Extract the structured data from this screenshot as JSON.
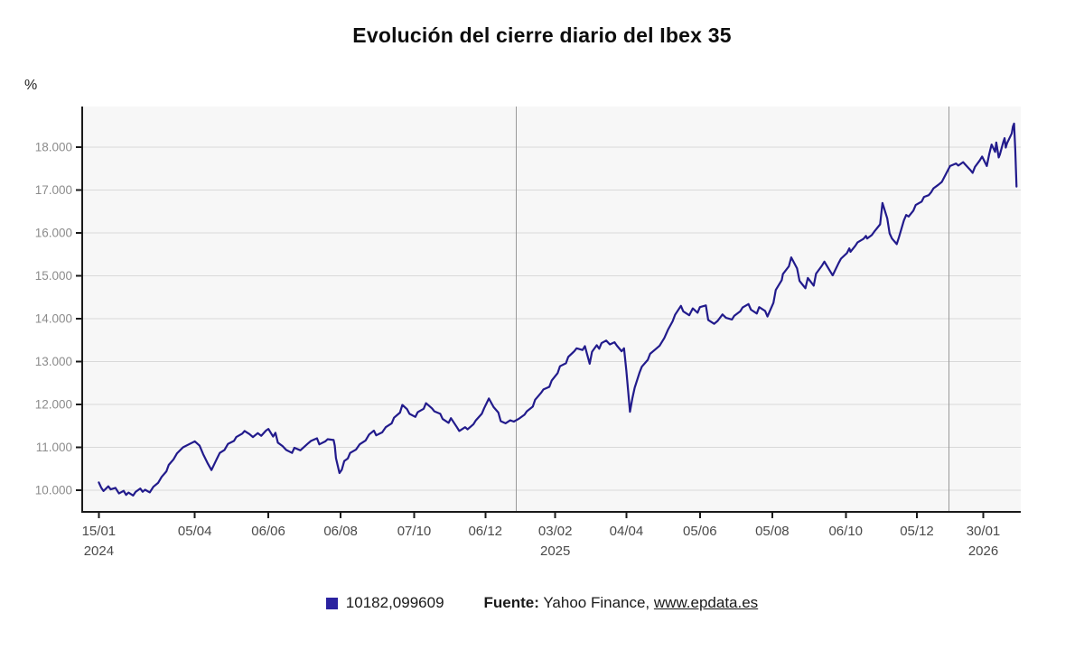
{
  "page": {
    "title": "Evolución del cierre diario del Ibex 35"
  },
  "footer": {
    "legend_value": "10182,099609",
    "source_label": "Fuente:",
    "source_text": " Yahoo Finance, ",
    "link_text": "www.epdata.es"
  },
  "chart_data": {
    "type": "line",
    "title": "Evolución del cierre diario del Ibex 35",
    "y_unit": "%",
    "series_name": "10182,099609",
    "legend_position": "bottom",
    "grid": true,
    "y_range": [
      9450,
      18950
    ],
    "x_range": [
      "2024-01-01",
      "2026-03-02"
    ],
    "colors": {
      "line": "#221b8c",
      "marker": "#2a22a0",
      "plot_bg": "#f7f7f7",
      "grid": "#d9d9d9",
      "axis": "#1a1a1a",
      "separator": "#9a9a9a",
      "y_tick_text": "#8c8c8c",
      "x_tick_text": "#4a4a4a"
    },
    "y_ticks": [
      {
        "value": 10000,
        "label": "10.000"
      },
      {
        "value": 11000,
        "label": "11.000"
      },
      {
        "value": 12000,
        "label": "12.000"
      },
      {
        "value": 13000,
        "label": "13.000"
      },
      {
        "value": 14000,
        "label": "14.000"
      },
      {
        "value": 15000,
        "label": "15.000"
      },
      {
        "value": 16000,
        "label": "16.000"
      },
      {
        "value": 17000,
        "label": "17.000"
      },
      {
        "value": 18000,
        "label": "18.000"
      }
    ],
    "x_ticks": [
      {
        "date": "2024-01-15",
        "label": "15/01",
        "year": "2024"
      },
      {
        "date": "2024-04-05",
        "label": "05/04"
      },
      {
        "date": "2024-06-06",
        "label": "06/06"
      },
      {
        "date": "2024-08-06",
        "label": "06/08"
      },
      {
        "date": "2024-10-07",
        "label": "07/10"
      },
      {
        "date": "2024-12-06",
        "label": "06/12"
      },
      {
        "date": "2025-02-03",
        "label": "03/02",
        "year": "2025"
      },
      {
        "date": "2025-04-04",
        "label": "04/04"
      },
      {
        "date": "2025-06-05",
        "label": "05/06"
      },
      {
        "date": "2025-08-05",
        "label": "05/08"
      },
      {
        "date": "2025-10-06",
        "label": "06/10"
      },
      {
        "date": "2025-12-05",
        "label": "05/12"
      },
      {
        "date": "2026-01-30",
        "label": "30/01",
        "year": "2026"
      }
    ],
    "year_separators": [
      "2025-01-01",
      "2026-01-01"
    ],
    "points": [
      [
        "2024-01-15",
        10182.1
      ],
      [
        "2024-01-17",
        10060
      ],
      [
        "2024-01-19",
        9980
      ],
      [
        "2024-01-23",
        10090
      ],
      [
        "2024-01-25",
        10020
      ],
      [
        "2024-01-29",
        10055
      ],
      [
        "2024-02-01",
        9925
      ],
      [
        "2024-02-05",
        9985
      ],
      [
        "2024-02-07",
        9890
      ],
      [
        "2024-02-09",
        9945
      ],
      [
        "2024-02-13",
        9875
      ],
      [
        "2024-02-15",
        9960
      ],
      [
        "2024-02-19",
        10040
      ],
      [
        "2024-02-21",
        9965
      ],
      [
        "2024-02-23",
        10010
      ],
      [
        "2024-02-27",
        9950
      ],
      [
        "2024-03-01",
        10080
      ],
      [
        "2024-03-05",
        10170
      ],
      [
        "2024-03-08",
        10310
      ],
      [
        "2024-03-12",
        10440
      ],
      [
        "2024-03-14",
        10590
      ],
      [
        "2024-03-18",
        10720
      ],
      [
        "2024-03-21",
        10860
      ],
      [
        "2024-03-26",
        11000
      ],
      [
        "2024-04-02",
        11100
      ],
      [
        "2024-04-05",
        11140
      ],
      [
        "2024-04-09",
        11040
      ],
      [
        "2024-04-12",
        10840
      ],
      [
        "2024-04-16",
        10620
      ],
      [
        "2024-04-19",
        10470
      ],
      [
        "2024-04-23",
        10700
      ],
      [
        "2024-04-26",
        10870
      ],
      [
        "2024-04-30",
        10940
      ],
      [
        "2024-05-03",
        11080
      ],
      [
        "2024-05-08",
        11150
      ],
      [
        "2024-05-10",
        11240
      ],
      [
        "2024-05-15",
        11320
      ],
      [
        "2024-05-17",
        11380
      ],
      [
        "2024-05-21",
        11310
      ],
      [
        "2024-05-24",
        11240
      ],
      [
        "2024-05-28",
        11330
      ],
      [
        "2024-05-31",
        11270
      ],
      [
        "2024-06-04",
        11390
      ],
      [
        "2024-06-06",
        11430
      ],
      [
        "2024-06-10",
        11250
      ],
      [
        "2024-06-12",
        11340
      ],
      [
        "2024-06-14",
        11110
      ],
      [
        "2024-06-18",
        11030
      ],
      [
        "2024-06-21",
        10940
      ],
      [
        "2024-06-26",
        10870
      ],
      [
        "2024-06-28",
        10990
      ],
      [
        "2024-07-03",
        10930
      ],
      [
        "2024-07-09",
        11080
      ],
      [
        "2024-07-12",
        11150
      ],
      [
        "2024-07-17",
        11210
      ],
      [
        "2024-07-19",
        11070
      ],
      [
        "2024-07-24",
        11140
      ],
      [
        "2024-07-26",
        11190
      ],
      [
        "2024-07-31",
        11170
      ],
      [
        "2024-08-01",
        11040
      ],
      [
        "2024-08-02",
        10750
      ],
      [
        "2024-08-05",
        10400
      ],
      [
        "2024-08-07",
        10480
      ],
      [
        "2024-08-09",
        10680
      ],
      [
        "2024-08-12",
        10740
      ],
      [
        "2024-08-14",
        10870
      ],
      [
        "2024-08-19",
        10950
      ],
      [
        "2024-08-22",
        11070
      ],
      [
        "2024-08-27",
        11160
      ],
      [
        "2024-08-30",
        11300
      ],
      [
        "2024-09-03",
        11390
      ],
      [
        "2024-09-05",
        11280
      ],
      [
        "2024-09-10",
        11350
      ],
      [
        "2024-09-13",
        11470
      ],
      [
        "2024-09-18",
        11560
      ],
      [
        "2024-09-20",
        11690
      ],
      [
        "2024-09-25",
        11810
      ],
      [
        "2024-09-27",
        11990
      ],
      [
        "2024-10-01",
        11890
      ],
      [
        "2024-10-03",
        11780
      ],
      [
        "2024-10-08",
        11710
      ],
      [
        "2024-10-10",
        11820
      ],
      [
        "2024-10-15",
        11900
      ],
      [
        "2024-10-17",
        12030
      ],
      [
        "2024-10-22",
        11910
      ],
      [
        "2024-10-24",
        11840
      ],
      [
        "2024-10-29",
        11780
      ],
      [
        "2024-10-31",
        11660
      ],
      [
        "2024-11-05",
        11570
      ],
      [
        "2024-11-07",
        11680
      ],
      [
        "2024-11-12",
        11470
      ],
      [
        "2024-11-14",
        11380
      ],
      [
        "2024-11-19",
        11470
      ],
      [
        "2024-11-21",
        11420
      ],
      [
        "2024-11-26",
        11540
      ],
      [
        "2024-11-28",
        11630
      ],
      [
        "2024-12-03",
        11780
      ],
      [
        "2024-12-05",
        11910
      ],
      [
        "2024-12-09",
        12140
      ],
      [
        "2024-12-11",
        12040
      ],
      [
        "2024-12-13",
        11940
      ],
      [
        "2024-12-17",
        11810
      ],
      [
        "2024-12-19",
        11610
      ],
      [
        "2024-12-23",
        11560
      ],
      [
        "2024-12-27",
        11630
      ],
      [
        "2024-12-30",
        11600
      ],
      [
        "2025-01-03",
        11660
      ],
      [
        "2025-01-08",
        11760
      ],
      [
        "2025-01-10",
        11840
      ],
      [
        "2025-01-15",
        11950
      ],
      [
        "2025-01-17",
        12110
      ],
      [
        "2025-01-22",
        12270
      ],
      [
        "2025-01-24",
        12350
      ],
      [
        "2025-01-29",
        12410
      ],
      [
        "2025-01-31",
        12560
      ],
      [
        "2025-02-05",
        12730
      ],
      [
        "2025-02-07",
        12890
      ],
      [
        "2025-02-12",
        12960
      ],
      [
        "2025-02-14",
        13110
      ],
      [
        "2025-02-19",
        13240
      ],
      [
        "2025-02-21",
        13310
      ],
      [
        "2025-02-26",
        13270
      ],
      [
        "2025-02-28",
        13360
      ],
      [
        "2025-03-04",
        12950
      ],
      [
        "2025-03-06",
        13230
      ],
      [
        "2025-03-10",
        13380
      ],
      [
        "2025-03-12",
        13300
      ],
      [
        "2025-03-14",
        13430
      ],
      [
        "2025-03-18",
        13490
      ],
      [
        "2025-03-21",
        13400
      ],
      [
        "2025-03-25",
        13450
      ],
      [
        "2025-03-27",
        13370
      ],
      [
        "2025-03-31",
        13240
      ],
      [
        "2025-04-02",
        13310
      ],
      [
        "2025-04-04",
        12780
      ],
      [
        "2025-04-07",
        11830
      ],
      [
        "2025-04-09",
        12140
      ],
      [
        "2025-04-11",
        12390
      ],
      [
        "2025-04-15",
        12740
      ],
      [
        "2025-04-17",
        12880
      ],
      [
        "2025-04-22",
        13040
      ],
      [
        "2025-04-24",
        13180
      ],
      [
        "2025-04-29",
        13300
      ],
      [
        "2025-05-02",
        13370
      ],
      [
        "2025-05-06",
        13550
      ],
      [
        "2025-05-09",
        13740
      ],
      [
        "2025-05-13",
        13940
      ],
      [
        "2025-05-15",
        14090
      ],
      [
        "2025-05-20",
        14300
      ],
      [
        "2025-05-22",
        14170
      ],
      [
        "2025-05-27",
        14080
      ],
      [
        "2025-05-30",
        14240
      ],
      [
        "2025-06-03",
        14140
      ],
      [
        "2025-06-05",
        14270
      ],
      [
        "2025-06-10",
        14310
      ],
      [
        "2025-06-12",
        13970
      ],
      [
        "2025-06-17",
        13880
      ],
      [
        "2025-06-20",
        13950
      ],
      [
        "2025-06-24",
        14100
      ],
      [
        "2025-06-27",
        14020
      ],
      [
        "2025-07-02",
        13980
      ],
      [
        "2025-07-04",
        14070
      ],
      [
        "2025-07-09",
        14170
      ],
      [
        "2025-07-11",
        14260
      ],
      [
        "2025-07-16",
        14340
      ],
      [
        "2025-07-18",
        14210
      ],
      [
        "2025-07-23",
        14120
      ],
      [
        "2025-07-25",
        14270
      ],
      [
        "2025-07-30",
        14180
      ],
      [
        "2025-08-01",
        14050
      ],
      [
        "2025-08-06",
        14370
      ],
      [
        "2025-08-08",
        14670
      ],
      [
        "2025-08-13",
        14900
      ],
      [
        "2025-08-14",
        15040
      ],
      [
        "2025-08-19",
        15220
      ],
      [
        "2025-08-21",
        15430
      ],
      [
        "2025-08-26",
        15170
      ],
      [
        "2025-08-28",
        14880
      ],
      [
        "2025-09-02",
        14710
      ],
      [
        "2025-09-04",
        14950
      ],
      [
        "2025-09-09",
        14770
      ],
      [
        "2025-09-11",
        15050
      ],
      [
        "2025-09-16",
        15240
      ],
      [
        "2025-09-18",
        15330
      ],
      [
        "2025-09-23",
        15100
      ],
      [
        "2025-09-25",
        15010
      ],
      [
        "2025-09-30",
        15300
      ],
      [
        "2025-10-02",
        15400
      ],
      [
        "2025-10-07",
        15530
      ],
      [
        "2025-10-09",
        15640
      ],
      [
        "2025-10-10",
        15560
      ],
      [
        "2025-10-14",
        15700
      ],
      [
        "2025-10-16",
        15780
      ],
      [
        "2025-10-21",
        15860
      ],
      [
        "2025-10-23",
        15930
      ],
      [
        "2025-10-24",
        15870
      ],
      [
        "2025-10-28",
        15950
      ],
      [
        "2025-10-30",
        16030
      ],
      [
        "2025-11-04",
        16200
      ],
      [
        "2025-11-06",
        16700
      ],
      [
        "2025-11-10",
        16340
      ],
      [
        "2025-11-12",
        15990
      ],
      [
        "2025-11-14",
        15870
      ],
      [
        "2025-11-18",
        15740
      ],
      [
        "2025-11-20",
        15910
      ],
      [
        "2025-11-24",
        16290
      ],
      [
        "2025-11-26",
        16420
      ],
      [
        "2025-11-28",
        16380
      ],
      [
        "2025-12-02",
        16520
      ],
      [
        "2025-12-04",
        16650
      ],
      [
        "2025-12-09",
        16730
      ],
      [
        "2025-12-11",
        16840
      ],
      [
        "2025-12-15",
        16880
      ],
      [
        "2025-12-17",
        16950
      ],
      [
        "2025-12-19",
        17040
      ],
      [
        "2025-12-23",
        17120
      ],
      [
        "2025-12-26",
        17190
      ],
      [
        "2025-12-30",
        17400
      ],
      [
        "2026-01-02",
        17560
      ],
      [
        "2026-01-07",
        17620
      ],
      [
        "2026-01-09",
        17570
      ],
      [
        "2026-01-13",
        17650
      ],
      [
        "2026-01-15",
        17590
      ],
      [
        "2026-01-19",
        17470
      ],
      [
        "2026-01-21",
        17400
      ],
      [
        "2026-01-23",
        17540
      ],
      [
        "2026-01-27",
        17690
      ],
      [
        "2026-01-29",
        17780
      ],
      [
        "2026-02-02",
        17560
      ],
      [
        "2026-02-04",
        17840
      ],
      [
        "2026-02-06",
        18060
      ],
      [
        "2026-02-09",
        17890
      ],
      [
        "2026-02-10",
        18110
      ],
      [
        "2026-02-12",
        17760
      ],
      [
        "2026-02-13",
        17830
      ],
      [
        "2026-02-16",
        18130
      ],
      [
        "2026-02-17",
        18210
      ],
      [
        "2026-02-18",
        17990
      ],
      [
        "2026-02-19",
        18090
      ],
      [
        "2026-02-23",
        18320
      ],
      [
        "2026-02-24",
        18480
      ],
      [
        "2026-02-25",
        18550
      ],
      [
        "2026-02-26",
        17950
      ],
      [
        "2026-02-27",
        17080
      ]
    ]
  }
}
